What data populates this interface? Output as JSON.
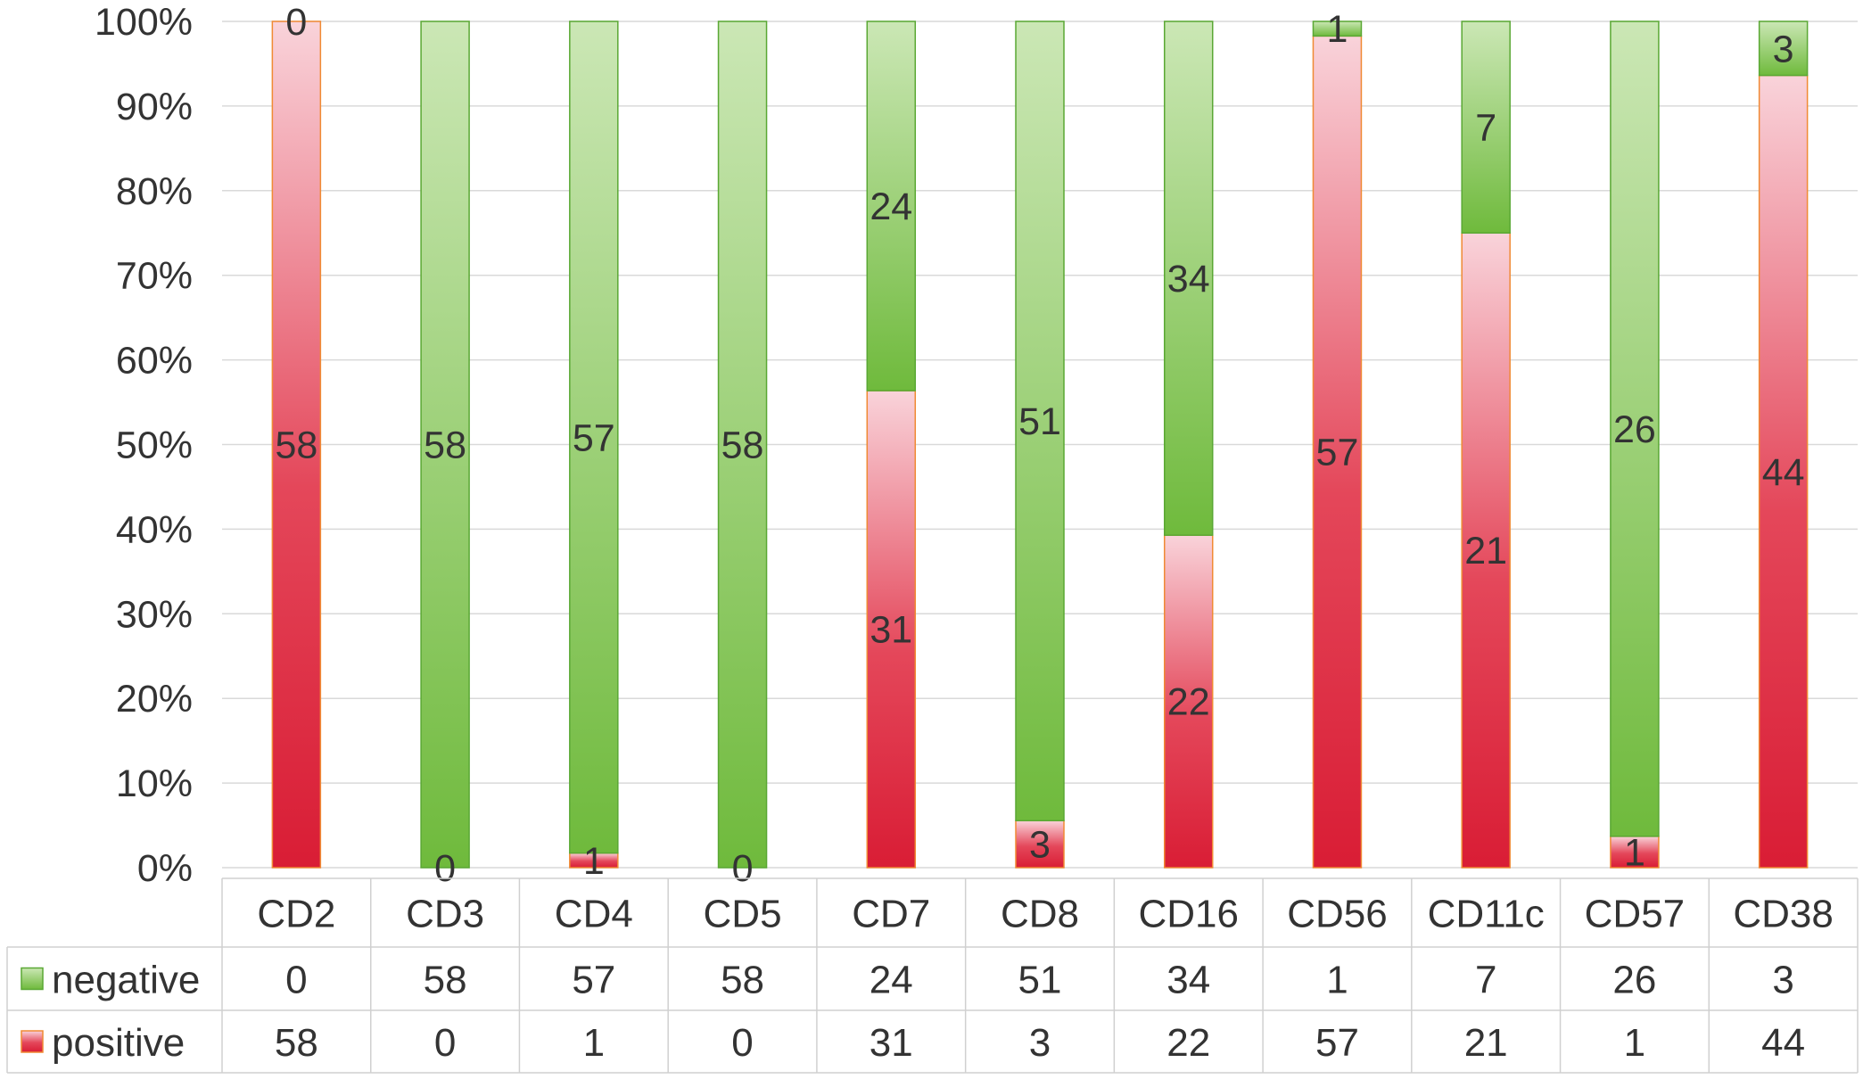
{
  "chart_data": {
    "type": "bar",
    "stacked": true,
    "normalized": true,
    "categories": [
      "CD2",
      "CD3",
      "CD4",
      "CD5",
      "CD7",
      "CD8",
      "CD16",
      "CD56",
      "CD11c",
      "CD57",
      "CD38"
    ],
    "series": [
      {
        "name": "negative",
        "values": [
          0,
          58,
          57,
          58,
          24,
          51,
          34,
          1,
          7,
          26,
          3
        ],
        "color": "#7cbf48",
        "color_light": "#c9e6b3"
      },
      {
        "name": "positive",
        "values": [
          58,
          0,
          1,
          0,
          31,
          3,
          22,
          57,
          21,
          1,
          44
        ],
        "color": "#dc2438",
        "color_light": "#f8cfd6"
      }
    ],
    "y_ticks": [
      "0%",
      "10%",
      "20%",
      "30%",
      "40%",
      "50%",
      "60%",
      "70%",
      "80%",
      "90%",
      "100%"
    ],
    "ylim": [
      0,
      100
    ],
    "grid": true,
    "legend": "data-table-left"
  }
}
